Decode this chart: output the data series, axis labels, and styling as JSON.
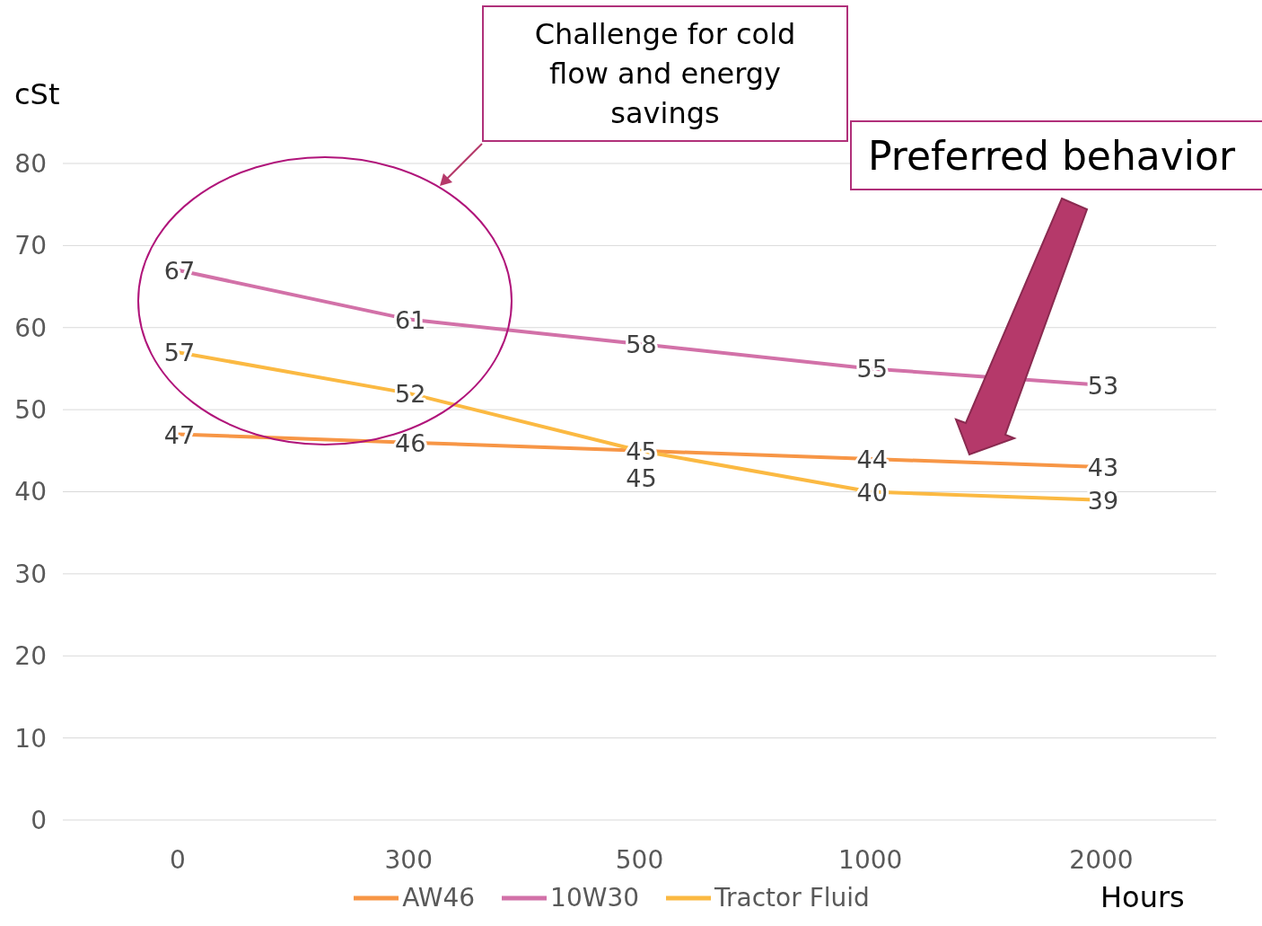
{
  "chart_data": {
    "type": "line",
    "ylabel": "cSt",
    "xlabel": "Hours",
    "categories": [
      "0",
      "300",
      "500",
      "1000",
      "2000"
    ],
    "series": [
      {
        "name": "AW46",
        "color": "#f79646",
        "values": [
          47,
          46,
          45,
          44,
          43
        ]
      },
      {
        "name": "10W30",
        "color": "#d271a8",
        "values": [
          67,
          61,
          58,
          55,
          53
        ]
      },
      {
        "name": "Tractor Fluid",
        "color": "#fbb942",
        "values": [
          57,
          52,
          45,
          40,
          39
        ]
      }
    ],
    "ylim": [
      0,
      80
    ],
    "yticks": [
      0,
      10,
      20,
      30,
      40,
      50,
      60,
      70,
      80
    ],
    "grid": "y",
    "legend": "bottom",
    "data_labels": true,
    "marker": "none",
    "line_style": "solid",
    "annotations": [
      "Challenge for cold flow and energy savings",
      "Preferred behavior"
    ]
  }
}
